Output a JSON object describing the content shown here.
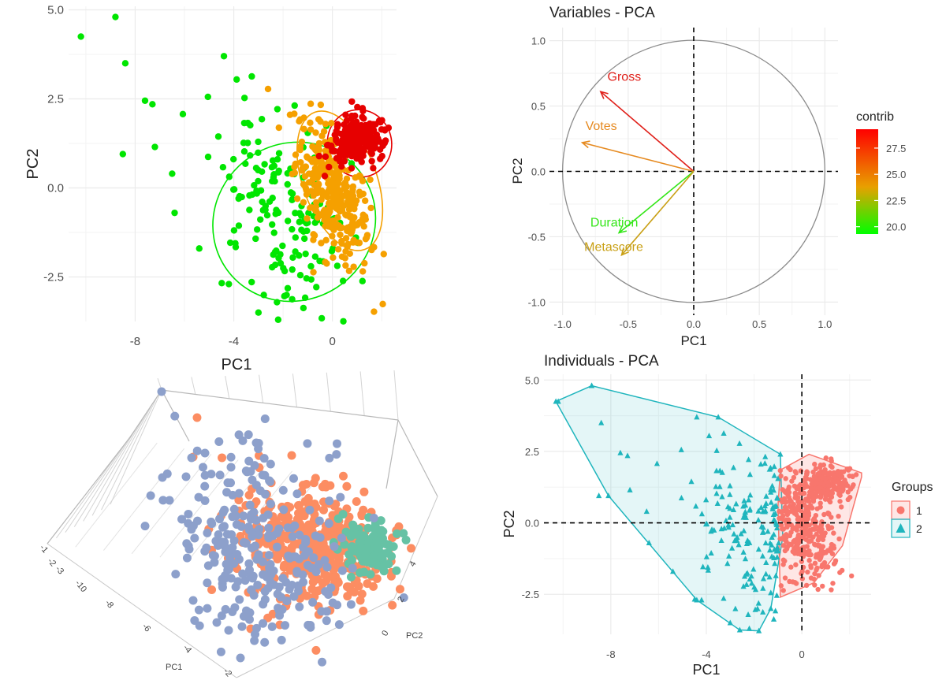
{
  "colors": {
    "grid": "#ebebeb",
    "axis_text": "#4d4d4d",
    "green": "#00e600",
    "orange": "#f5a000",
    "red": "#e60000",
    "teal": "#1fb5bd",
    "salmon": "#f8766d",
    "periwinkle": "#8da0cb",
    "coral": "#fc8d62",
    "mint": "#66c2a5"
  },
  "chart_data": [
    {
      "id": "scatter_groups",
      "type": "scatter",
      "title": "",
      "xlabel": "PC1",
      "ylabel": "PC2",
      "xlim": [
        -10.7,
        2.6
      ],
      "ylim": [
        -3.75,
        5.1
      ],
      "xticks": [
        -8,
        -4,
        0
      ],
      "yticks": [
        -2.5,
        0.0,
        2.5,
        5.0
      ],
      "ytick_labels": [
        "-2.5",
        "0.0",
        "2.5",
        "5.0"
      ],
      "grid": true,
      "legend": "none",
      "series": [
        {
          "color": "green",
          "ellipse": {
            "cx": -1.55,
            "cy": -0.95,
            "rx": 3.35,
            "ry": 2.2,
            "angle": -33
          }
        },
        {
          "color": "orange",
          "ellipse": {
            "cx": 0.3,
            "cy": 0.2,
            "rx": 1.5,
            "ry": 2.05,
            "angle": -20
          }
        },
        {
          "color": "red",
          "ellipse": {
            "cx": 1.1,
            "cy": 1.25,
            "rx": 1.3,
            "ry": 0.95,
            "angle": -15
          }
        }
      ]
    },
    {
      "id": "variables_pca",
      "type": "scatter",
      "title": "Variables - PCA",
      "xlabel": "PC1",
      "ylabel": "PC2",
      "xlim": [
        -1.1,
        1.1
      ],
      "ylim": [
        -1.1,
        1.1
      ],
      "xticks": [
        -1.0,
        -0.5,
        0.0,
        0.5,
        1.0
      ],
      "xtick_labels": [
        "-1.0",
        "-0.5",
        "0.0",
        "0.5",
        "1.0"
      ],
      "yticks": [
        -1.0,
        -0.5,
        0.0,
        0.5,
        1.0
      ],
      "ytick_labels": [
        "-1.0",
        "-0.5",
        "0.0",
        "0.5",
        "1.0"
      ],
      "grid": true,
      "legend": "right",
      "legend_title": "contrib",
      "legend_ticks": [
        "27.5",
        "25.0",
        "22.5",
        "20.0"
      ],
      "legend_tick_values": [
        27.5,
        25.0,
        22.5,
        20.0
      ],
      "legend_range": [
        19.3,
        29.3
      ],
      "vectors": [
        {
          "name": "Gross",
          "x": -0.71,
          "y": 0.61,
          "contrib": 29.0,
          "color": "#e0201a"
        },
        {
          "name": "Votes",
          "x": -0.85,
          "y": 0.22,
          "contrib": 26.2,
          "color": "#e68a20"
        },
        {
          "name": "Duration",
          "x": -0.57,
          "y": -0.47,
          "contrib": 19.6,
          "color": "#33e617"
        },
        {
          "name": "Metascore",
          "x": -0.55,
          "y": -0.64,
          "contrib": 24.2,
          "color": "#c9a015"
        }
      ]
    },
    {
      "id": "scatter_3d",
      "type": "scatter",
      "title": "",
      "axis_labels": [
        "PC1",
        "PC2"
      ],
      "tick_labels_left": [
        "-1",
        "-2",
        "-3",
        "-10"
      ],
      "tick_labels_bottom": [
        "-8",
        "-6",
        "-4",
        "-2"
      ],
      "tick_labels_right": [
        "4",
        "2",
        "0"
      ],
      "series": [
        {
          "color": "periwinkle"
        },
        {
          "color": "coral"
        },
        {
          "color": "mint"
        }
      ]
    },
    {
      "id": "individuals_pca",
      "type": "scatter",
      "title": "Individuals - PCA",
      "xlabel": "PC1",
      "ylabel": "PC2",
      "xlim": [
        -10.8,
        2.9
      ],
      "ylim": [
        -3.9,
        5.2
      ],
      "xticks": [
        -8,
        -4,
        0
      ],
      "yticks": [
        -2.5,
        0.0,
        2.5,
        5.0
      ],
      "ytick_labels": [
        "-2.5",
        "0.0",
        "2.5",
        "5.0"
      ],
      "grid": true,
      "legend": "right",
      "legend_title": "Groups",
      "series": [
        {
          "name": "1",
          "color": "salmon",
          "hull": [
            [
              -0.9,
              1.85
            ],
            [
              0.3,
              2.4
            ],
            [
              2.5,
              1.75
            ],
            [
              2.5,
              1.6
            ],
            [
              1.7,
              -0.8
            ],
            [
              0.5,
              -2.1
            ],
            [
              -0.9,
              -2.6
            ],
            [
              -1.0,
              0.6
            ]
          ]
        },
        {
          "name": "2",
          "color": "teal",
          "hull": [
            [
              -8.8,
              4.8
            ],
            [
              -10.3,
              4.25
            ],
            [
              -8.1,
              0.95
            ],
            [
              -4.4,
              -2.7
            ],
            [
              -2.6,
              -3.75
            ],
            [
              -1.8,
              -3.78
            ],
            [
              -1.3,
              -3.0
            ],
            [
              -0.8,
              -0.5
            ],
            [
              -0.9,
              2.4
            ],
            [
              -3.5,
              3.7
            ]
          ]
        }
      ]
    }
  ]
}
